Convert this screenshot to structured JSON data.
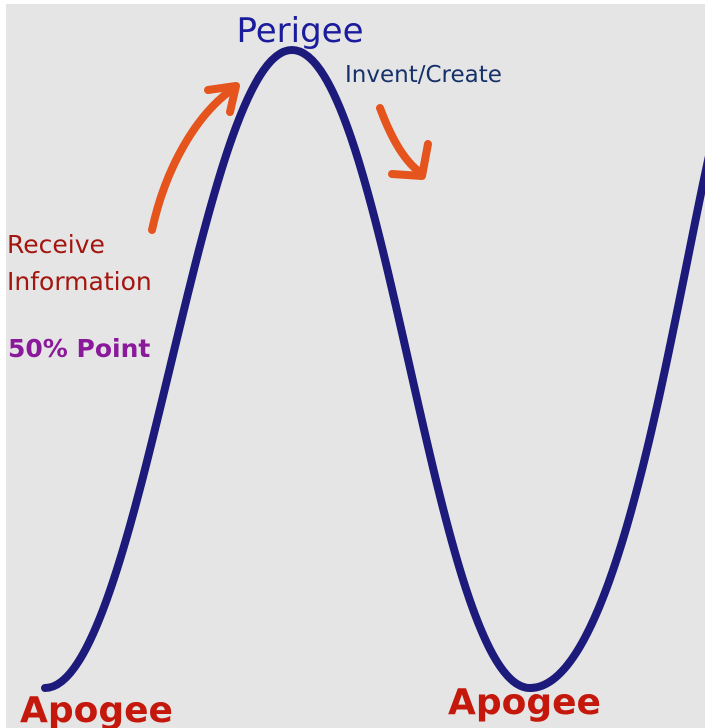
{
  "labels": {
    "perigee": "Perigee",
    "invent_create": "Invent/Create",
    "receive_information": [
      "Receive",
      "Information"
    ],
    "point_50": "50% Point",
    "apogee_left": "Apogee",
    "apogee_right": "Apogee"
  }
}
